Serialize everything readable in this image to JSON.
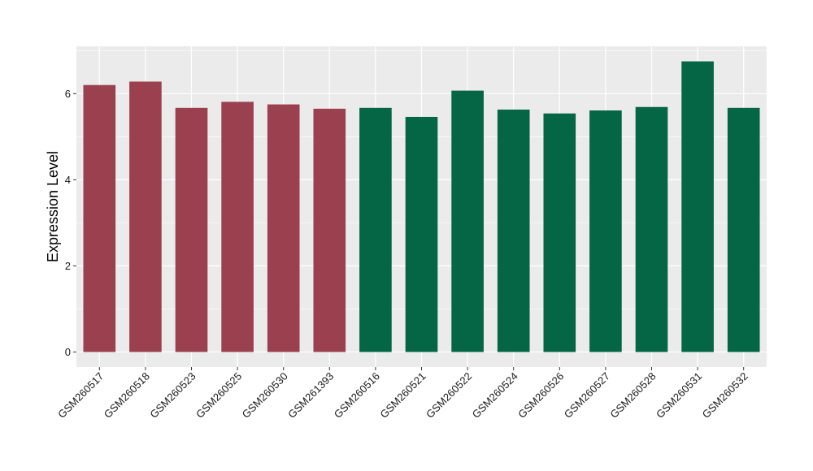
{
  "chart_data": {
    "type": "bar",
    "title": "",
    "xlabel": "",
    "ylabel": "Expression Level",
    "ylim": [
      -0.35,
      7.1
    ],
    "yticks": [
      0,
      2,
      4,
      6
    ],
    "grid": true,
    "categories": [
      "GSM260517",
      "GSM260518",
      "GSM260523",
      "GSM260525",
      "GSM260530",
      "GSM261393",
      "GSM260516",
      "GSM260521",
      "GSM260522",
      "GSM260524",
      "GSM260526",
      "GSM260527",
      "GSM260528",
      "GSM260531",
      "GSM260532"
    ],
    "values": [
      6.2,
      6.28,
      5.67,
      5.81,
      5.75,
      5.65,
      5.67,
      5.46,
      6.07,
      5.63,
      5.54,
      5.61,
      5.69,
      6.75,
      5.67
    ],
    "groups": [
      0,
      0,
      0,
      0,
      0,
      0,
      1,
      1,
      1,
      1,
      1,
      1,
      1,
      1,
      1
    ],
    "colors": {
      "group_0": "#9a404f",
      "group_1": "#046644",
      "panel_background": "#ebebeb",
      "grid": "#ffffff"
    }
  }
}
